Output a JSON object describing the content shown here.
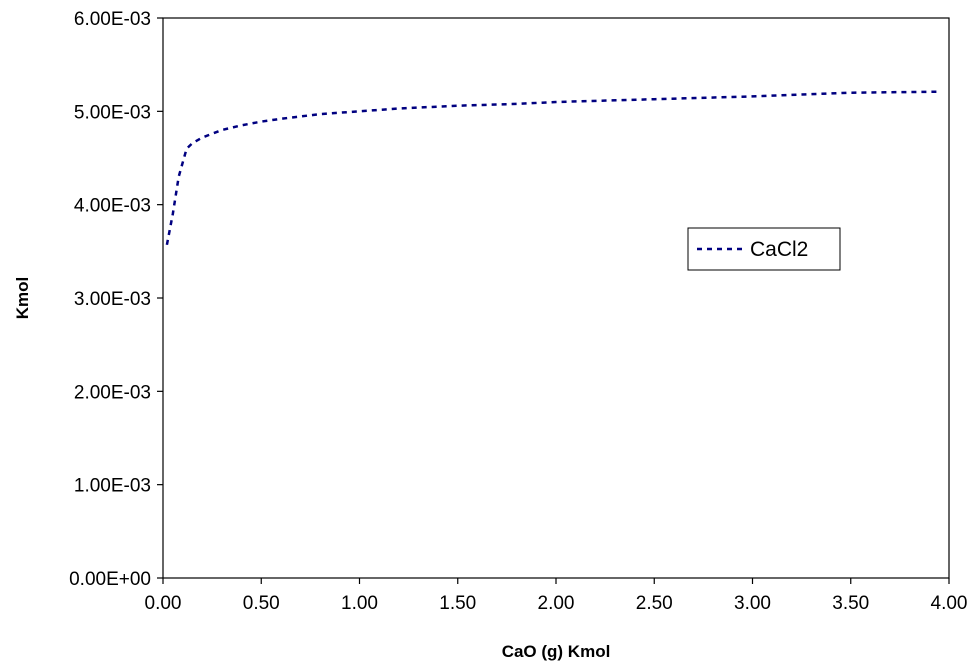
{
  "chart_data": {
    "type": "line",
    "title": "",
    "xlabel": "CaO (g) Kmol",
    "ylabel": "Kmol",
    "xlim": [
      0,
      4
    ],
    "ylim": [
      0,
      0.006
    ],
    "x_ticks": [
      "0.00",
      "0.50",
      "1.00",
      "1.50",
      "2.00",
      "2.50",
      "3.00",
      "3.50",
      "4.00"
    ],
    "y_ticks": [
      "0.00E+00",
      "1.00E-03",
      "2.00E-03",
      "3.00E-03",
      "4.00E-03",
      "5.00E-03",
      "6.00E-03"
    ],
    "grid": false,
    "legend_position": "right",
    "series": [
      {
        "name": "CaCl2",
        "color": "#000080",
        "line_style": "dashed",
        "x": [
          0.02,
          0.05,
          0.08,
          0.12,
          0.15,
          0.2,
          0.3,
          0.4,
          0.5,
          0.6,
          0.8,
          1.0,
          1.2,
          1.5,
          1.8,
          2.0,
          2.5,
          3.0,
          3.5,
          3.95
        ],
        "y": [
          0.00357,
          0.0039,
          0.0043,
          0.0046,
          0.00466,
          0.00472,
          0.0048,
          0.00485,
          0.00489,
          0.00492,
          0.00497,
          0.005,
          0.00503,
          0.00506,
          0.00508,
          0.0051,
          0.00513,
          0.00516,
          0.0052,
          0.00521
        ]
      }
    ]
  }
}
